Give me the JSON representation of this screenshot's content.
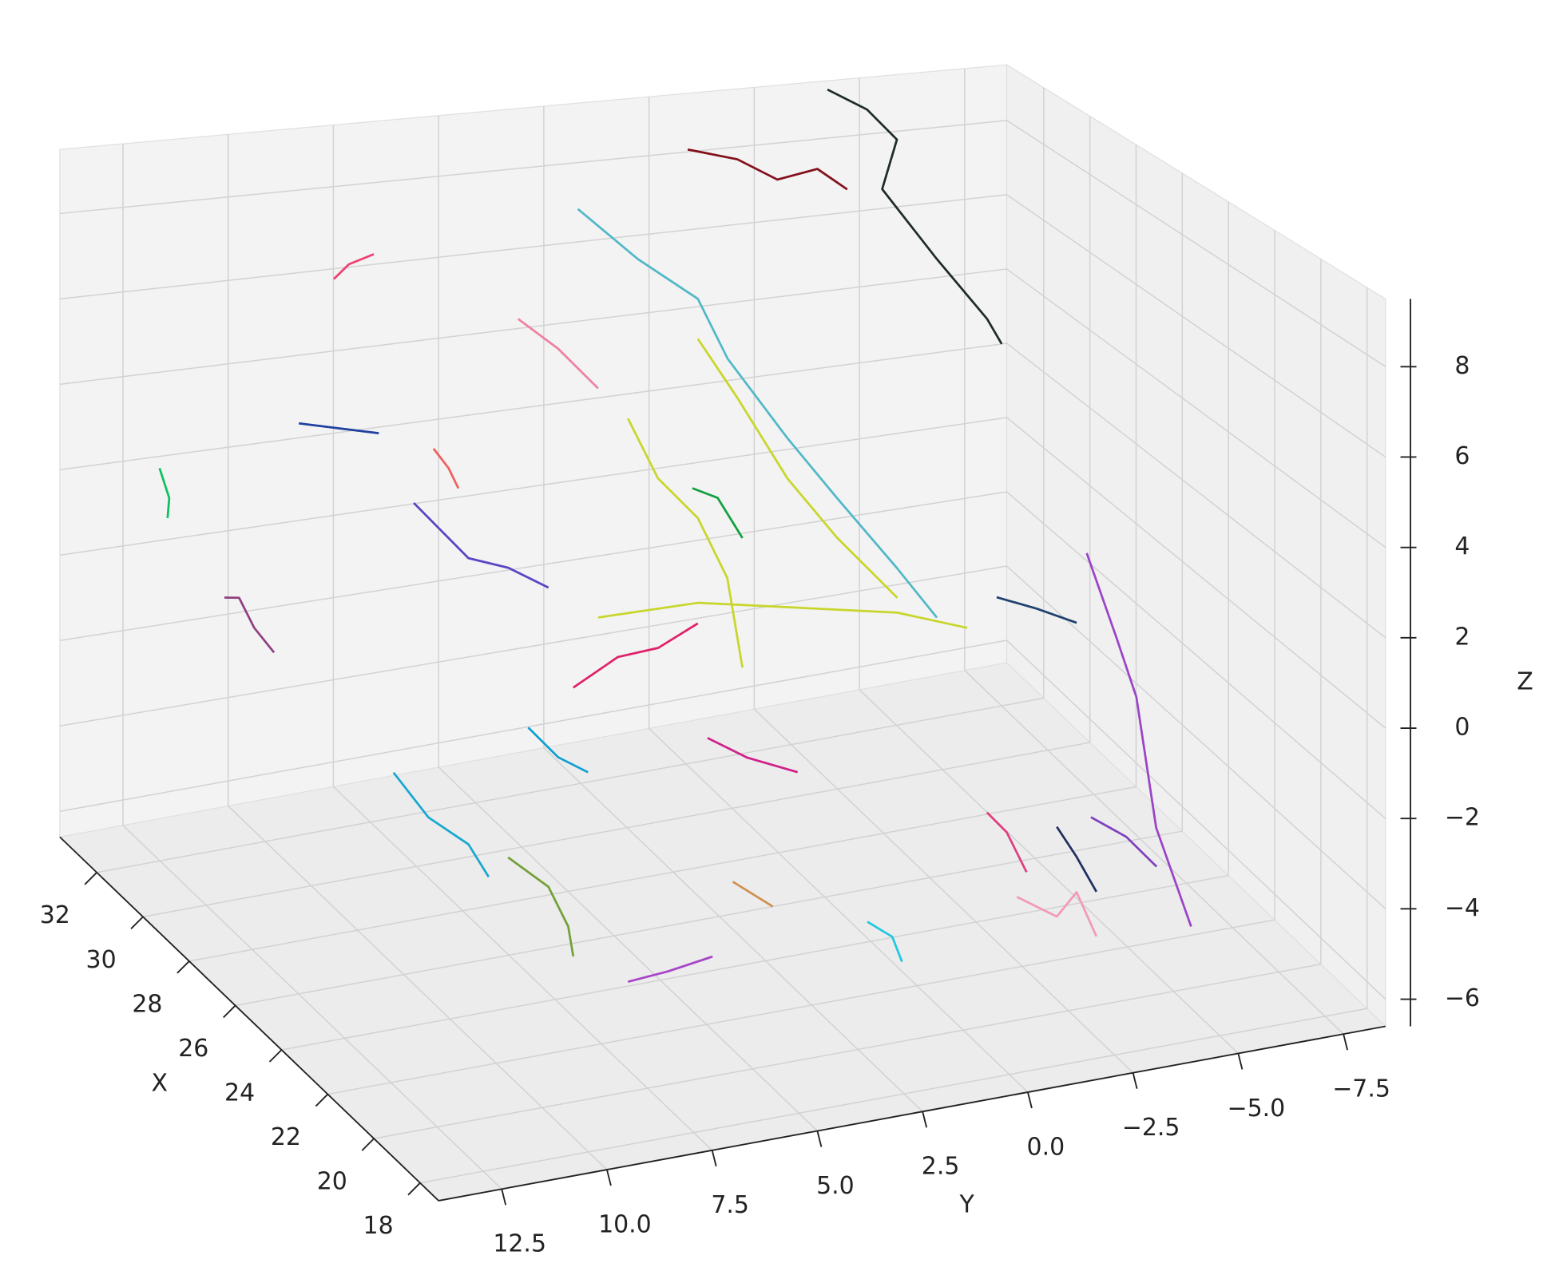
{
  "chart_data": {
    "type": "line3d",
    "xlabel": "X",
    "ylabel": "Y",
    "zlabel": "Z",
    "xlim": [
      17.2,
      33.6
    ],
    "ylim": [
      -8.5,
      14
    ],
    "zlim": [
      -6.6,
      9.5
    ],
    "xticks": [
      18,
      20,
      22,
      24,
      26,
      28,
      30,
      32
    ],
    "yticks": [
      {
        "value": 12.5,
        "label": "12.5"
      },
      {
        "value": 10,
        "label": "10.0"
      },
      {
        "value": 7.5,
        "label": "7.5"
      },
      {
        "value": 5,
        "label": "5.0"
      },
      {
        "value": 2.5,
        "label": "2.5"
      },
      {
        "value": 0,
        "label": "0.0"
      },
      {
        "value": -2.5,
        "label": "−2.5"
      },
      {
        "value": -5,
        "label": "−5.0"
      },
      {
        "value": -7.5,
        "label": "−7.5"
      }
    ],
    "zticks": [
      {
        "value": -6,
        "label": "−6"
      },
      {
        "value": -4,
        "label": "−4"
      },
      {
        "value": -2,
        "label": "−2"
      },
      0,
      2,
      4,
      6,
      8
    ],
    "grid": true,
    "series": [
      {
        "color": "#1f2b2b",
        "x": [
          33.6,
          33.6,
          33.6,
          33.6,
          33.6,
          33.6,
          33.6
        ],
        "y": [
          -4.24,
          -5.18,
          -5.89,
          -5.54,
          -6.84,
          -8.03,
          -8.38
        ],
        "z": [
          9.27,
          8.65,
          7.78,
          6.51,
          4.49,
          2.73,
          2.0
        ]
      },
      {
        "color": "#52b8c8",
        "x": [
          33.6,
          33.6,
          33.6,
          33.6,
          33.6,
          33.6,
          33.6,
          33.6
        ],
        "y": [
          1.69,
          0.27,
          -1.16,
          -1.87,
          -3.29,
          -4.47,
          -5.89,
          -6.84
        ],
        "z": [
          6.83,
          5.4,
          4.2,
          2.56,
          0.29,
          -1.47,
          -3.56,
          -5.06
        ]
      },
      {
        "color": "#c8d62c",
        "x": [
          27.04,
          27.04,
          27.04,
          27.04,
          27.04
        ],
        "y": [
          4.81,
          2.44,
          0.07,
          -2.3,
          -3.96
        ],
        "z": [
          0.34,
          0.31,
          -0.19,
          -0.7,
          -1.35
        ]
      },
      {
        "color": "#c8d62c",
        "x": [
          27.04,
          27.04,
          27.04,
          27.04,
          27.04
        ],
        "y": [
          2.44,
          1.49,
          0.31,
          -0.87,
          -2.3
        ],
        "z": [
          6.6,
          5.04,
          2.95,
          1.34,
          -0.34
        ]
      },
      {
        "color": "#c8d62c",
        "x": [
          27.04,
          27.04,
          27.04,
          27.04,
          27.04
        ],
        "y": [
          4.1,
          3.39,
          2.44,
          1.74,
          1.38
        ],
        "z": [
          4.94,
          3.42,
          2.33,
          0.79,
          -1.41
        ]
      },
      {
        "color": "#e0206a",
        "x": [
          27.04,
          27.04,
          27.04,
          27.04
        ],
        "y": [
          5.4,
          4.34,
          3.38,
          2.44
        ],
        "z": [
          -1.22,
          -0.67,
          -0.61,
          -0.18
        ]
      },
      {
        "color": "#5a44c4",
        "x": [
          27.04,
          27.04,
          27.04,
          27.04
        ],
        "y": [
          9.19,
          7.89,
          6.94,
          5.99
        ],
        "z": [
          3.69,
          2.21,
          1.84,
          1.23
        ]
      },
      {
        "color": "#9a44c8",
        "x": [
          22.12,
          22.12,
          22.12,
          22.12,
          22.12
        ],
        "y": [
          -4.1,
          -4.81,
          -5.28,
          -5.75,
          -6.58
        ],
        "z": [
          2.64,
          0.55,
          -0.9,
          -4.02,
          -6.47
        ]
      },
      {
        "color": "#1aa8d0",
        "x": [
          19.66,
          19.66,
          19.66,
          19.66
        ],
        "y": [
          13.72,
          12.89,
          11.94,
          11.46
        ],
        "z": [
          1.69,
          0.55,
          -0.21,
          -1.02
        ]
      },
      {
        "color": "#74a038",
        "x": [
          19.66,
          19.66,
          19.66,
          19.66
        ],
        "y": [
          11.0,
          10.04,
          9.57,
          9.45
        ],
        "z": [
          -0.66,
          -1.48,
          -2.45,
          -3.14
        ]
      },
      {
        "color": "#a844c8",
        "x": [
          19.66,
          19.66,
          19.66
        ],
        "y": [
          8.15,
          7.2,
          6.14
        ],
        "z": [
          -3.93,
          -3.86,
          -3.71
        ]
      },
      {
        "color": "#f29ab8",
        "x": [
          19.66,
          19.66,
          19.66,
          19.66
        ],
        "y": [
          -1.09,
          -2.04,
          -2.51,
          -2.98
        ],
        "z": [
          -3.61,
          -4.22,
          -3.75,
          -4.83
        ]
      },
      {
        "color": "#82101a",
        "x": [
          33.6,
          33.6,
          33.6,
          33.6,
          33.6
        ],
        "y": [
          -0.92,
          -2.1,
          -3.05,
          -4.0,
          -4.71
        ],
        "z": [
          8.06,
          7.68,
          7.05,
          7.22,
          6.6
        ]
      },
      {
        "color": "#f04070",
        "x": [
          33.6,
          33.6,
          33.6
        ],
        "y": [
          7.49,
          7.13,
          6.54
        ],
        "z": [
          5.75,
          6.07,
          6.25
        ]
      },
      {
        "color": "#10c060",
        "x": [
          33.6,
          33.6,
          33.6
        ],
        "y": [
          11.63,
          11.4,
          11.44
        ],
        "z": [
          1.72,
          0.98,
          0.51
        ]
      },
      {
        "color": "#904080",
        "x": [
          33.6,
          33.6,
          33.6,
          33.6
        ],
        "y": [
          10.09,
          9.74,
          9.38,
          8.91
        ],
        "z": [
          -1.59,
          -1.65,
          -2.43,
          -3.1
        ]
      },
      {
        "color": "#2040a0",
        "x": [
          33.6,
          33.6,
          33.6
        ],
        "y": [
          8.32,
          7.37,
          6.42
        ],
        "z": [
          2.35,
          2.1,
          1.85
        ]
      },
      {
        "color": "#f080a0",
        "x": [
          33.6,
          33.6,
          33.6
        ],
        "y": [
          3.11,
          2.16,
          1.21
        ],
        "z": [
          4.24,
          3.37,
          2.24
        ]
      },
      {
        "color": "#f06060",
        "x": [
          33.6,
          33.6,
          33.6
        ],
        "y": [
          5.12,
          4.76,
          4.53
        ],
        "z": [
          1.29,
          0.75,
          0.22
        ]
      },
      {
        "color": "#10a040",
        "x": [
          27.04,
          27.04,
          27.04
        ],
        "y": [
          2.57,
          1.97,
          1.38
        ],
        "z": [
          3.06,
          2.74,
          1.69
        ]
      },
      {
        "color": "#d0208a",
        "x": [
          22.12,
          22.12,
          22.12
        ],
        "y": [
          4.91,
          3.96,
          2.77
        ],
        "z": [
          -0.13,
          -0.74,
          -1.27
        ]
      },
      {
        "color": "#10a0d0",
        "x": [
          22.12,
          22.12,
          22.12
        ],
        "y": [
          9.17,
          8.46,
          7.75
        ],
        "z": [
          0.81,
          0.02,
          -0.44
        ]
      },
      {
        "color": "#203060",
        "x": [
          19.66,
          19.66,
          19.66
        ],
        "y": [
          -2.04,
          -2.51,
          -2.98
        ],
        "z": [
          -2.19,
          -2.95,
          -3.82
        ]
      },
      {
        "color": "#204070",
        "x": [
          27.04,
          27.04,
          27.04
        ],
        "y": [
          -4.66,
          -5.61,
          -6.56
        ],
        "z": [
          -0.72,
          -1.16,
          -1.67
        ]
      },
      {
        "color": "#20c8e0",
        "x": [
          19.66,
          19.66,
          19.66
        ],
        "y": [
          2.46,
          1.87,
          1.64
        ],
        "z": [
          -3.56,
          -4.0,
          -4.6
        ]
      },
      {
        "color": "#d09050",
        "x": [
          19.66,
          19.66
        ],
        "y": [
          5.66,
          4.71
        ],
        "z": [
          -2.11,
          -2.83
        ]
      },
      {
        "color": "#8040c0",
        "x": [
          19.66,
          19.66,
          19.66
        ],
        "y": [
          -2.85,
          -3.69,
          -4.41
        ],
        "z": [
          -2.11,
          -2.7,
          -3.5
        ]
      },
      {
        "color": "#e04080",
        "x": [
          19.66,
          19.66,
          19.66
        ],
        "y": [
          -0.38,
          -0.85,
          -1.32
        ],
        "z": [
          -1.58,
          -2.11,
          -3.09
        ]
      }
    ]
  }
}
